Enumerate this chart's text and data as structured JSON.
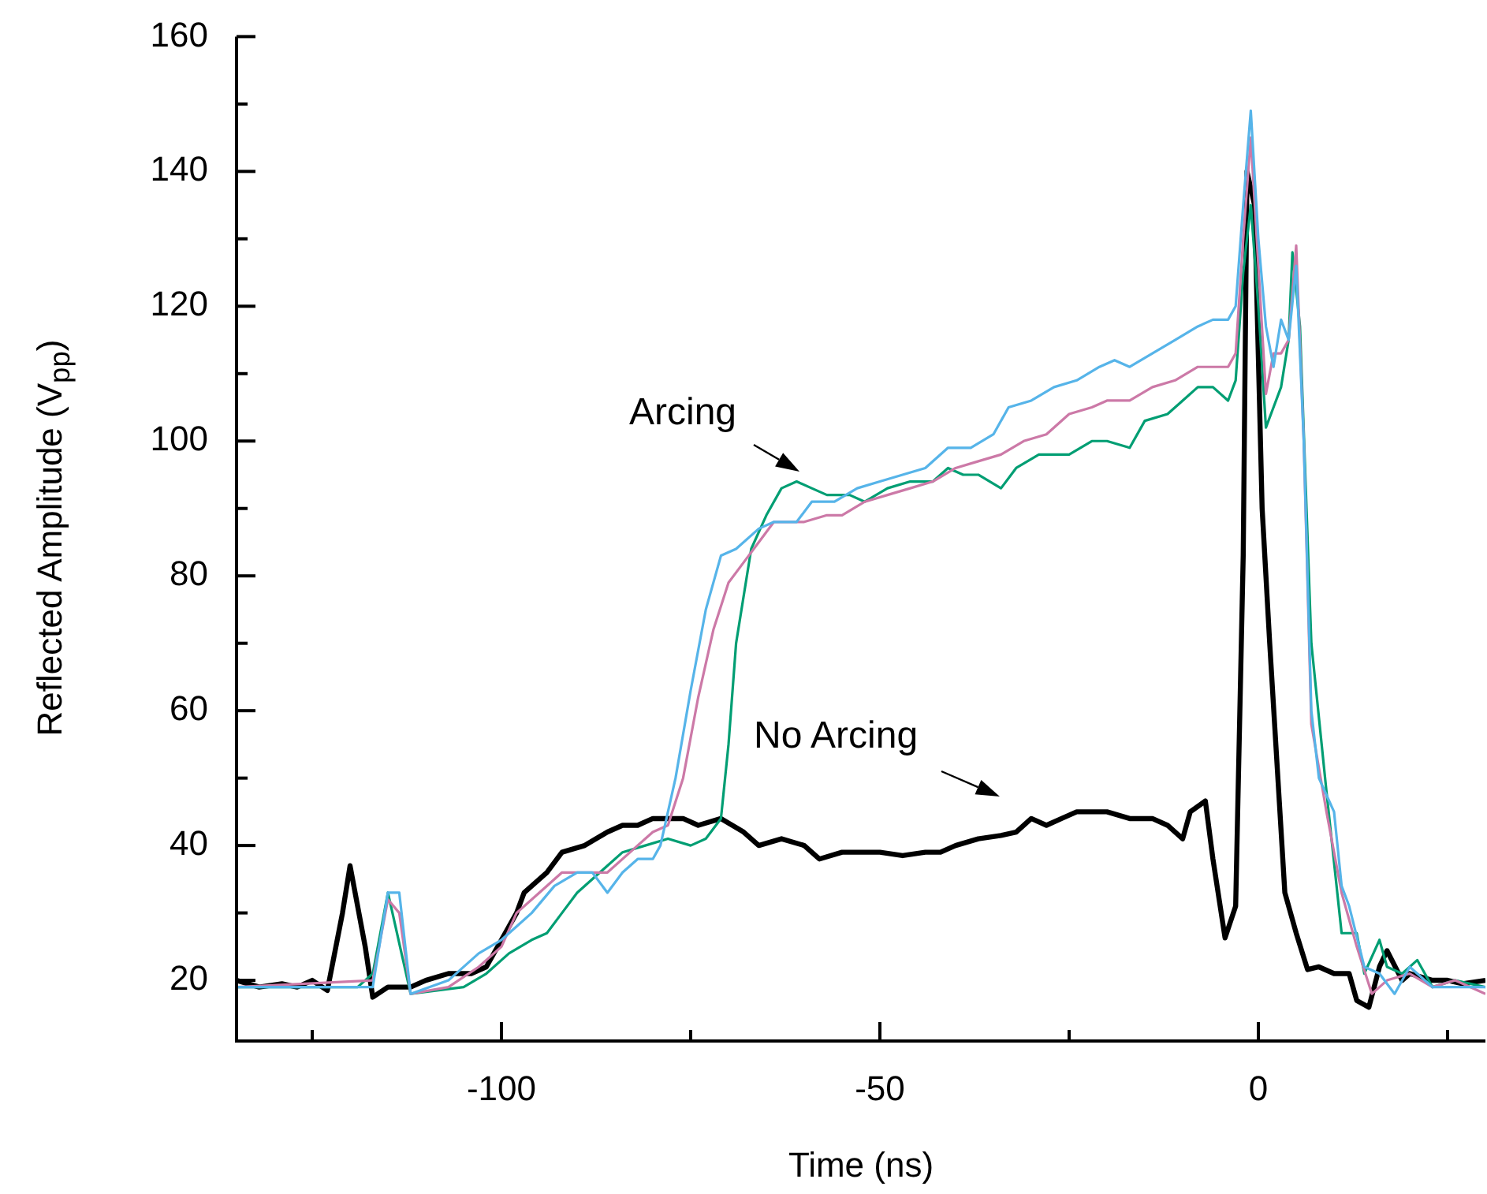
{
  "chart_data": {
    "type": "line",
    "xlabel": "Time (ns)",
    "ylabel": "Reflected Amplitude (V$_{pp}$)",
    "xlim": [
      -135,
      30
    ],
    "ylim": [
      11,
      160
    ],
    "xticks": [
      {
        "value": -125,
        "label": null
      },
      -100,
      {
        "value": -75,
        "label": null
      },
      -50,
      {
        "value": -25,
        "label": null
      },
      0,
      {
        "value": 25,
        "label": null
      }
    ],
    "yticks": [
      20,
      {
        "value": 30,
        "label": null
      },
      40,
      {
        "value": 50,
        "label": null
      },
      60,
      {
        "value": 70,
        "label": null
      },
      80,
      {
        "value": 90,
        "label": null
      },
      100,
      {
        "value": 110,
        "label": null
      },
      120,
      {
        "value": 130,
        "label": null
      },
      140,
      {
        "value": 150,
        "label": null
      },
      160
    ],
    "grid": false,
    "legend": false,
    "marker": "none",
    "line_style": "solid",
    "annotations": [
      "Arcing",
      "No Arcing"
    ],
    "series": [
      {
        "color": "#56b4e9",
        "x": [
          -135,
          -117,
          -115,
          -113.5,
          -112,
          -107,
          -103,
          -100,
          -98,
          -96,
          -93,
          -90,
          -88,
          -86,
          -84,
          -82,
          -80,
          -79,
          -77,
          -75,
          -73,
          -71,
          -69,
          -66,
          -64,
          -61,
          -59,
          -56,
          -53,
          -50,
          -47,
          -44,
          -41,
          -38,
          -35,
          -33,
          -30,
          -27,
          -24,
          -21,
          -19,
          -17,
          -14,
          -11,
          -8,
          -6,
          -4,
          -3,
          -2,
          -1,
          0,
          1,
          2,
          3,
          4,
          5,
          6,
          7,
          8,
          10,
          11,
          12,
          14,
          16,
          18,
          20,
          23,
          26,
          30
        ],
        "values": [
          19,
          19,
          33,
          33,
          18,
          20,
          24,
          26,
          28,
          30,
          34,
          36,
          36,
          33,
          36,
          38,
          38,
          40,
          50,
          63,
          75,
          83,
          84,
          87,
          88,
          88,
          91,
          91,
          93,
          94,
          95,
          96,
          99,
          99,
          101,
          105,
          106,
          108,
          109,
          111,
          112,
          111,
          113,
          115,
          117,
          118,
          118,
          120,
          135,
          149,
          130,
          117,
          111,
          118,
          115,
          126,
          100,
          60,
          50,
          45,
          34,
          31,
          22,
          21,
          18,
          22,
          19,
          19,
          19
        ]
      },
      {
        "color": "#cc79a7",
        "x": [
          -135,
          -117,
          -115,
          -113.5,
          -112,
          -107,
          -103,
          -100,
          -98,
          -95,
          -92,
          -89,
          -86,
          -83,
          -80,
          -78,
          -76,
          -74,
          -72,
          -70,
          -68,
          -66,
          -64,
          -60,
          -57,
          -55,
          -52,
          -49,
          -46,
          -43,
          -40,
          -37,
          -34,
          -31,
          -28,
          -25,
          -22,
          -20,
          -17,
          -14,
          -11,
          -8,
          -6,
          -4,
          -3,
          -2,
          -1,
          0,
          1,
          2,
          3,
          4,
          5,
          6,
          7,
          9,
          11,
          13,
          15,
          17,
          20,
          23,
          26,
          30
        ],
        "values": [
          19,
          20,
          32,
          30,
          18,
          19,
          22,
          25,
          30,
          33,
          36,
          36,
          36,
          39,
          42,
          43,
          50,
          62,
          72,
          79,
          82,
          85,
          88,
          88,
          89,
          89,
          91,
          92,
          93,
          94,
          96,
          97,
          98,
          100,
          101,
          104,
          105,
          106,
          106,
          108,
          109,
          111,
          111,
          111,
          113,
          130,
          145,
          126,
          107,
          113,
          113,
          115,
          129,
          100,
          58,
          45,
          33,
          25,
          18,
          20,
          21,
          19,
          20,
          18
        ]
      },
      {
        "color": "#009e73",
        "x": [
          -135,
          -119,
          -117,
          -115,
          -114,
          -112,
          -105,
          -102,
          -99,
          -96,
          -94,
          -92,
          -90,
          -87,
          -84,
          -81,
          -78,
          -75,
          -73,
          -71,
          -70,
          -69,
          -67,
          -65,
          -63,
          -61,
          -59,
          -57,
          -54,
          -52,
          -49,
          -46,
          -43,
          -41,
          -39,
          -37,
          -34,
          -32,
          -29,
          -25,
          -22,
          -20,
          -17,
          -15,
          -12,
          -10,
          -8,
          -6,
          -4,
          -3,
          -2,
          -1,
          0,
          1,
          2,
          3,
          4,
          4.5,
          5.5,
          7,
          9,
          11,
          13,
          14,
          16,
          17,
          19,
          21,
          23,
          26,
          30
        ],
        "values": [
          19,
          19,
          21,
          33,
          28,
          18,
          19,
          21,
          24,
          26,
          27,
          30,
          33,
          36,
          39,
          40,
          41,
          40,
          41,
          44,
          55,
          70,
          84,
          89,
          93,
          94,
          93,
          92,
          92,
          91,
          93,
          94,
          94,
          96,
          95,
          95,
          93,
          96,
          98,
          98,
          100,
          100,
          99,
          103,
          104,
          106,
          108,
          108,
          106,
          109,
          125,
          135,
          120,
          102,
          105,
          108,
          115,
          128,
          117,
          70,
          48,
          27,
          27,
          21,
          26,
          22,
          21,
          23,
          19,
          20,
          19
        ]
      },
      {
        "color": "#000000",
        "x": [
          -135,
          -132,
          -129,
          -127,
          -125,
          -123,
          -121,
          -120,
          -118,
          -117,
          -115,
          -112,
          -110,
          -107,
          -104,
          -102,
          -100,
          -98,
          -97,
          -94,
          -92,
          -89,
          -86,
          -84,
          -82,
          -80,
          -76,
          -74,
          -71,
          -68,
          -66,
          -63,
          -60,
          -58,
          -55,
          -53,
          -50,
          -47,
          -44,
          -42,
          -40,
          -37,
          -34,
          -32,
          -30,
          -28,
          -26,
          -24,
          -20,
          -17,
          -14,
          -12,
          -10,
          -9,
          -7,
          -6,
          -4.4,
          -3,
          -2,
          -1.5,
          -0.5,
          0.5,
          1.5,
          3.5,
          5,
          6.5,
          8,
          10,
          12,
          13,
          14.6,
          16,
          17,
          19,
          20,
          23,
          25,
          27,
          30
        ],
        "values": [
          20,
          19,
          19.5,
          19,
          20,
          18.5,
          30,
          37,
          25,
          17.5,
          19,
          19,
          20,
          21,
          21,
          22,
          26,
          30,
          33,
          36,
          39,
          40,
          42,
          43,
          43,
          44,
          44,
          43,
          44,
          42,
          40,
          41,
          40,
          38,
          39,
          39,
          39,
          38.5,
          39,
          39,
          40,
          41,
          41.5,
          42,
          44,
          43,
          44,
          45,
          45,
          44,
          44,
          43,
          41,
          45,
          46.6,
          38,
          26.3,
          31,
          83,
          140,
          135,
          90,
          70,
          33,
          27,
          21.6,
          22,
          21,
          21,
          17,
          16,
          22,
          24.4,
          20,
          21,
          20,
          20,
          19.5,
          20
        ]
      }
    ]
  }
}
